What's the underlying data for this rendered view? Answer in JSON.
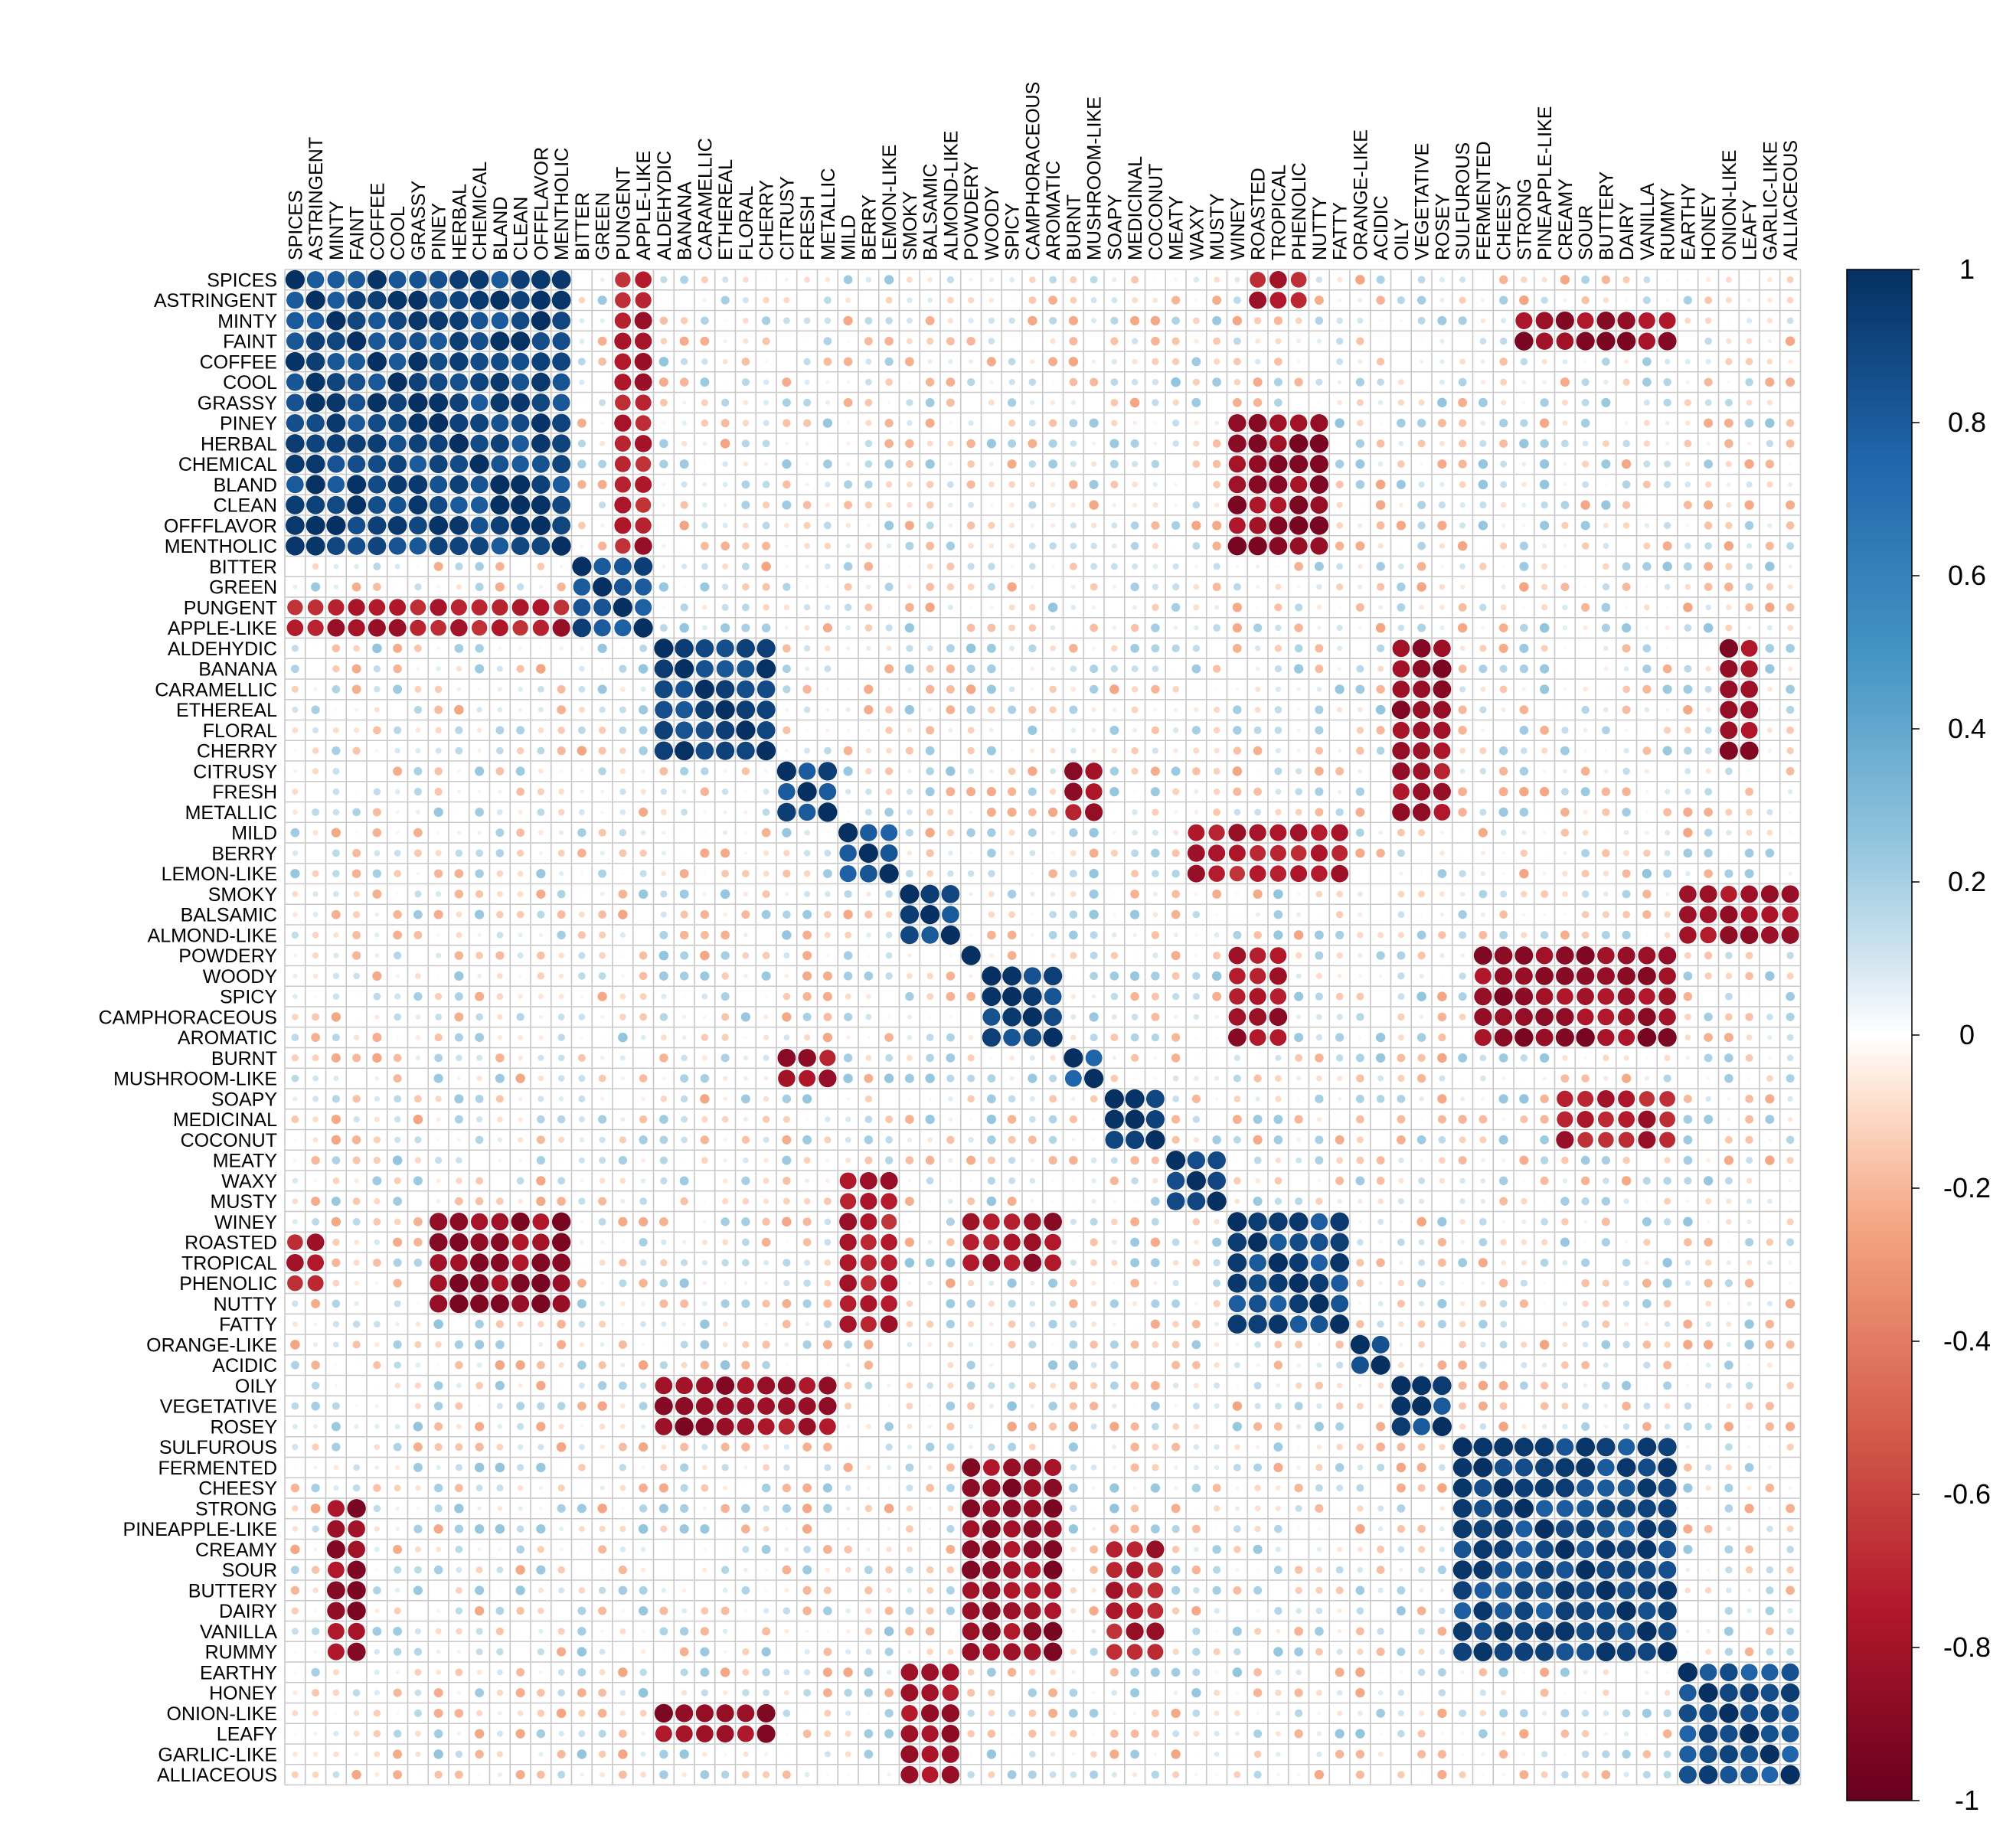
{
  "chart_data": {
    "type": "heatmap",
    "subtype": "correlation-matrix",
    "title": "",
    "method": "circle",
    "legend_position": "right",
    "color_scale": {
      "min": -1,
      "max": 1,
      "stops": [
        {
          "value": -1,
          "color": "#67001F"
        },
        {
          "value": -0.75,
          "color": "#B2182B"
        },
        {
          "value": -0.5,
          "color": "#D6604D"
        },
        {
          "value": -0.25,
          "color": "#F4A582"
        },
        {
          "value": -0.1,
          "color": "#FDDBC7"
        },
        {
          "value": 0,
          "color": "#FFFFFF"
        },
        {
          "value": 0.1,
          "color": "#D1E5F0"
        },
        {
          "value": 0.25,
          "color": "#92C5DE"
        },
        {
          "value": 0.5,
          "color": "#4393C3"
        },
        {
          "value": 0.75,
          "color": "#2166AC"
        },
        {
          "value": 1,
          "color": "#053061"
        }
      ]
    },
    "colorbar_ticks": [
      "1",
      "0.8",
      "0.6",
      "0.4",
      "0.2",
      "0",
      "-0.2",
      "-0.4",
      "-0.6",
      "-0.8",
      "-1"
    ],
    "colorbar_tick_values": [
      1,
      0.8,
      0.6,
      0.4,
      0.2,
      0,
      -0.2,
      -0.4,
      -0.6,
      -0.8,
      -1
    ],
    "variables": [
      "SPICES",
      "ASTRINGENT",
      "MINTY",
      "FAINT",
      "COFFEE",
      "COOL",
      "GRASSY",
      "PINEY",
      "HERBAL",
      "CHEMICAL",
      "BLAND",
      "CLEAN",
      "OFFFLAVOR",
      "MENTHOLIC",
      "BITTER",
      "GREEN",
      "PUNGENT",
      "APPLE-LIKE",
      "ALDEHYDIC",
      "BANANA",
      "CARAMELLIC",
      "ETHEREAL",
      "FLORAL",
      "CHERRY",
      "CITRUSY",
      "FRESH",
      "METALLIC",
      "MILD",
      "BERRY",
      "LEMON-LIKE",
      "SMOKY",
      "BALSAMIC",
      "ALMOND-LIKE",
      "POWDERY",
      "WOODY",
      "SPICY",
      "CAMPHORACEOUS",
      "AROMATIC",
      "BURNT",
      "MUSHROOM-LIKE",
      "SOAPY",
      "MEDICINAL",
      "COCONUT",
      "MEATY",
      "WAXY",
      "MUSTY",
      "WINEY",
      "ROASTED",
      "TROPICAL",
      "PHENOLIC",
      "NUTTY",
      "FATTY",
      "ORANGE-LIKE",
      "ACIDIC",
      "OILY",
      "VEGETATIVE",
      "ROSEY",
      "SULFUROUS",
      "FERMENTED",
      "CHEESY",
      "STRONG",
      "PINEAPPLE-LIKE",
      "CREAMY",
      "SOUR",
      "BUTTERY",
      "DAIRY",
      "VANILLA",
      "RUMMY",
      "EARTHY",
      "HONEY",
      "ONION-LIKE",
      "LEAFY",
      "GARLIC-LIKE",
      "ALLIACEOUS"
    ],
    "strong_blocks": [
      {
        "name": "spices-mentholic",
        "rows": [
          "SPICES",
          "MENTHOLIC"
        ],
        "r": 0.9
      },
      {
        "name": "bitter-apple",
        "rows": [
          "BITTER",
          "APPLE-LIKE"
        ],
        "r": 0.85
      },
      {
        "name": "aldehydic-cherry",
        "rows": [
          "ALDEHYDIC",
          "CHERRY"
        ],
        "r": 0.92
      },
      {
        "name": "citrusy-metallic",
        "rows": [
          "CITRUSY",
          "METALLIC"
        ],
        "r": 0.88
      },
      {
        "name": "mild-lemon",
        "rows": [
          "MILD",
          "LEMON-LIKE"
        ],
        "r": 0.85
      },
      {
        "name": "smoky-almond",
        "rows": [
          "SMOKY",
          "ALMOND-LIKE"
        ],
        "r": 0.88
      },
      {
        "name": "woody-aromatic",
        "rows": [
          "WOODY",
          "AROMATIC"
        ],
        "r": 0.92
      },
      {
        "name": "burnt-mushroom",
        "rows": [
          "BURNT",
          "MUSHROOM-LIKE"
        ],
        "r": 0.85
      },
      {
        "name": "soapy-coconut",
        "rows": [
          "SOAPY",
          "COCONUT"
        ],
        "r": 0.9
      },
      {
        "name": "meaty-musty",
        "rows": [
          "MEATY",
          "MUSTY"
        ],
        "r": 0.8
      },
      {
        "name": "winey-fatty",
        "rows": [
          "WINEY",
          "FATTY"
        ],
        "r": 0.88
      },
      {
        "name": "orange-acidic",
        "rows": [
          "ORANGE-LIKE",
          "ACIDIC"
        ],
        "r": 0.88
      },
      {
        "name": "oily-rosey",
        "rows": [
          "OILY",
          "ROSEY"
        ],
        "r": 0.9
      },
      {
        "name": "sulfurous-rummy",
        "rows": [
          "SULFUROUS",
          "RUMMY"
        ],
        "r": 0.88
      },
      {
        "name": "earthy-alliaceous",
        "rows": [
          "EARTHY",
          "ALLIACEOUS"
        ],
        "r": 0.85
      }
    ],
    "negative_blocks": [
      {
        "rows": [
          "SPICES",
          "MENTHOLIC"
        ],
        "cols": [
          "PUNGENT",
          "APPLE-LIKE"
        ],
        "r": -0.75
      },
      {
        "rows": [
          "SPICES",
          "ASTRINGENT"
        ],
        "cols": [
          "ROASTED",
          "PHENOLIC"
        ],
        "r": -0.75
      },
      {
        "rows": [
          "MINTY",
          "FAINT"
        ],
        "cols": [
          "STRONG",
          "RUMMY"
        ],
        "r": -0.85
      },
      {
        "rows": [
          "PINEY",
          "MENTHOLIC"
        ],
        "cols": [
          "WINEY",
          "NUTTY"
        ],
        "r": -0.85
      },
      {
        "rows": [
          "ALDEHYDIC",
          "CHERRY"
        ],
        "cols": [
          "OILY",
          "ROSEY"
        ],
        "r": -0.85
      },
      {
        "rows": [
          "ALDEHYDIC",
          "CHERRY"
        ],
        "cols": [
          "ONION-LIKE",
          "LEAFY"
        ],
        "r": -0.85
      },
      {
        "rows": [
          "CITRUSY",
          "METALLIC"
        ],
        "cols": [
          "BURNT",
          "MUSHROOM-LIKE"
        ],
        "r": -0.8
      },
      {
        "rows": [
          "CITRUSY",
          "METALLIC"
        ],
        "cols": [
          "OILY",
          "ROSEY"
        ],
        "r": -0.8
      },
      {
        "rows": [
          "MILD",
          "LEMON-LIKE"
        ],
        "cols": [
          "WAXY",
          "FATTY"
        ],
        "r": -0.75
      },
      {
        "rows": [
          "SMOKY",
          "ALMOND-LIKE"
        ],
        "cols": [
          "EARTHY",
          "ALLIACEOUS"
        ],
        "r": -0.8
      },
      {
        "rows": [
          "POWDERY",
          "AROMATIC"
        ],
        "cols": [
          "WINEY",
          "TROPICAL"
        ],
        "r": -0.8
      },
      {
        "rows": [
          "POWDERY",
          "AROMATIC"
        ],
        "cols": [
          "FERMENTED",
          "RUMMY"
        ],
        "r": -0.85
      },
      {
        "rows": [
          "SOAPY",
          "COCONUT"
        ],
        "cols": [
          "CREAMY",
          "RUMMY"
        ],
        "r": -0.75
      }
    ]
  }
}
